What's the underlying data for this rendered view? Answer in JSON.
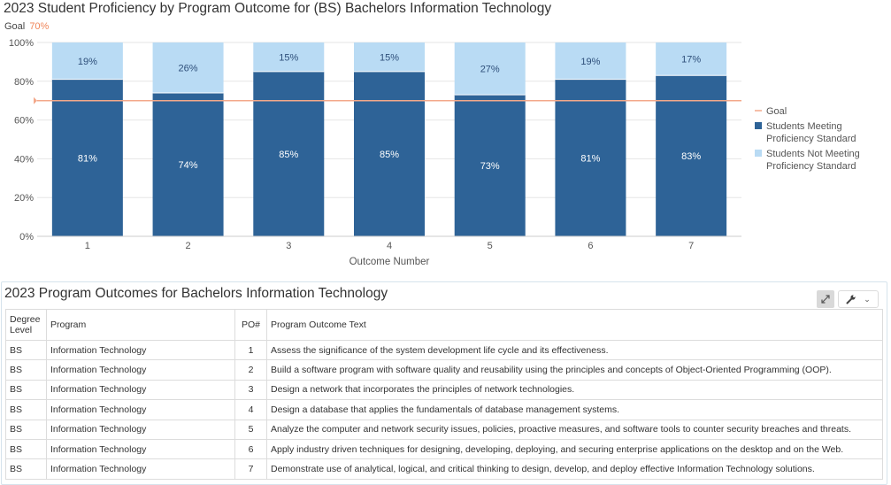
{
  "chart_data": {
    "type": "bar",
    "stacked": true,
    "title": "2023 Student Proficiency by Program Outcome for (BS) Bachelors Information Technology",
    "goal_caption": "Goal",
    "goal_value_label": "70%",
    "goal": 70,
    "xlabel": "Outcome Number",
    "ylabel": "",
    "ylim": [
      0,
      100
    ],
    "yticks": [
      "0%",
      "20%",
      "40%",
      "60%",
      "80%",
      "100%"
    ],
    "categories": [
      "1",
      "2",
      "3",
      "4",
      "5",
      "6",
      "7"
    ],
    "series": [
      {
        "name": "Students Meeting Proficiency Standard",
        "color": "#2e6397",
        "values": [
          81,
          74,
          85,
          85,
          73,
          81,
          83
        ],
        "labels": [
          "81%",
          "74%",
          "85%",
          "85%",
          "73%",
          "81%",
          "83%"
        ]
      },
      {
        "name": "Students Not Meeting Proficiency Standard",
        "color": "#b9dbf4",
        "values": [
          19,
          26,
          15,
          15,
          27,
          19,
          17
        ],
        "labels": [
          "19%",
          "26%",
          "15%",
          "15%",
          "27%",
          "19%",
          "17%"
        ]
      }
    ],
    "goal_color": "#f3a88a",
    "grid": true,
    "legend_position": "right",
    "legend": [
      {
        "key": "goal",
        "lines": [
          "Goal"
        ]
      },
      {
        "key": "meeting",
        "lines": [
          "Students Meeting",
          "Proficiency Standard"
        ]
      },
      {
        "key": "notmeeting",
        "lines": [
          "Students Not Meeting",
          "Proficiency Standard"
        ]
      }
    ]
  },
  "table": {
    "title": "2023 Program Outcomes for Bachelors Information Technology",
    "columns": {
      "degree_line1": "Degree",
      "degree_line2": "Level",
      "program": "Program",
      "po": "PO#",
      "text": "Program Outcome Text"
    },
    "rows": [
      {
        "degree": "BS",
        "program": "Information Technology",
        "po": "1",
        "text": "Assess the significance of the system development life cycle and its effectiveness."
      },
      {
        "degree": "BS",
        "program": "Information Technology",
        "po": "2",
        "text": "Build a software program with software quality and reusability using the principles and concepts of Object-Oriented Programming (OOP)."
      },
      {
        "degree": "BS",
        "program": "Information Technology",
        "po": "3",
        "text": "Design a network that incorporates the principles of network technologies."
      },
      {
        "degree": "BS",
        "program": "Information Technology",
        "po": "4",
        "text": "Design a database that applies the fundamentals of database management systems."
      },
      {
        "degree": "BS",
        "program": "Information Technology",
        "po": "5",
        "text": "Analyze the computer and network security issues, policies, proactive measures, and software tools to counter security breaches and threats."
      },
      {
        "degree": "BS",
        "program": "Information Technology",
        "po": "6",
        "text": "Apply industry driven techniques for designing, developing, deploying, and securing enterprise applications on the desktop and on the Web."
      },
      {
        "degree": "BS",
        "program": "Information Technology",
        "po": "7",
        "text": "Demonstrate use of analytical, logical, and critical thinking to design, develop, and deploy effective Information Technology solutions."
      }
    ]
  },
  "toolbar": {
    "expand_icon": "expand-arrows-icon",
    "wrench_icon": "wrench-icon",
    "chevron_icon": "chevron-down-icon"
  }
}
